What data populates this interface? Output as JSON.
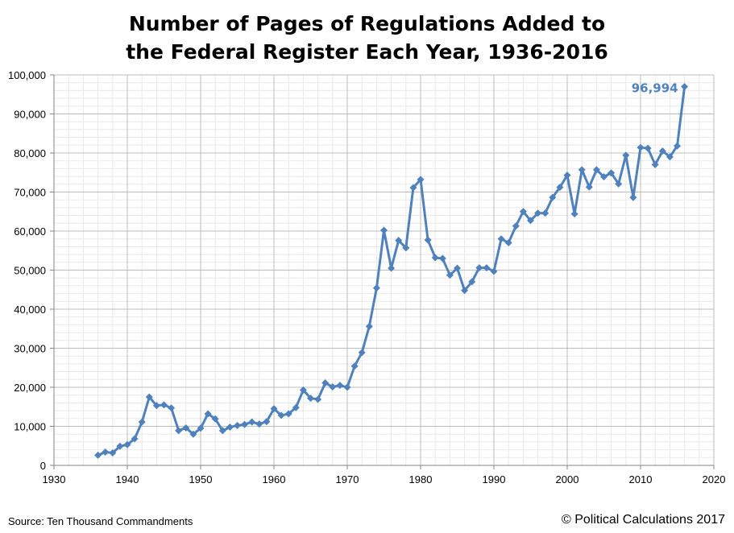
{
  "chart_data": {
    "type": "line",
    "title_lines": [
      "Number of Pages of Regulations Added to",
      "the Federal Register Each Year, 1936-2016"
    ],
    "xlabel": "",
    "ylabel": "",
    "xlim": [
      1930,
      2020
    ],
    "ylim": [
      0,
      100000
    ],
    "x_ticks": [
      1930,
      1940,
      1950,
      1960,
      1970,
      1980,
      1990,
      2000,
      2010,
      2020
    ],
    "y_ticks": [
      0,
      10000,
      20000,
      30000,
      40000,
      50000,
      60000,
      70000,
      80000,
      90000,
      100000
    ],
    "y_tick_labels": [
      "0",
      "10,000",
      "20,000",
      "30,000",
      "40,000",
      "50,000",
      "60,000",
      "70,000",
      "80,000",
      "90,000",
      "100,000"
    ],
    "grid": true,
    "series": [
      {
        "color": "#4f81bd",
        "x": [
          1936,
          1937,
          1938,
          1939,
          1940,
          1941,
          1942,
          1943,
          1944,
          1945,
          1946,
          1947,
          1948,
          1949,
          1950,
          1951,
          1952,
          1953,
          1954,
          1955,
          1956,
          1957,
          1958,
          1959,
          1960,
          1961,
          1962,
          1963,
          1964,
          1965,
          1966,
          1967,
          1968,
          1969,
          1970,
          1971,
          1972,
          1973,
          1974,
          1975,
          1976,
          1977,
          1978,
          1979,
          1980,
          1981,
          1982,
          1983,
          1984,
          1985,
          1986,
          1987,
          1988,
          1989,
          1990,
          1991,
          1992,
          1993,
          1994,
          1995,
          1996,
          1997,
          1998,
          1999,
          2000,
          2001,
          2002,
          2003,
          2004,
          2005,
          2006,
          2007,
          2008,
          2009,
          2010,
          2011,
          2012,
          2013,
          2014,
          2015,
          2016
        ],
        "y": [
          2600,
          3400,
          3200,
          4900,
          5300,
          6800,
          11100,
          17500,
          15300,
          15500,
          14700,
          8900,
          9600,
          8000,
          9500,
          13200,
          11900,
          8900,
          9800,
          10200,
          10500,
          11100,
          10600,
          11200,
          14500,
          12800,
          13200,
          14800,
          19300,
          17200,
          16900,
          21100,
          20100,
          20500,
          20000,
          25400,
          28900,
          35600,
          45400,
          60200,
          50500,
          57600,
          55700,
          71100,
          73200,
          57700,
          53200,
          53000,
          48700,
          50500,
          44800,
          47000,
          50600,
          50600,
          49700,
          58000,
          57000,
          61300,
          65000,
          62700,
          64600,
          64600,
          68600,
          71200,
          74300,
          64400,
          75700,
          71300,
          75700,
          73900,
          74900,
          72100,
          79400,
          68600,
          81400,
          81200,
          77000,
          80500,
          79000,
          81800,
          96994
        ]
      }
    ],
    "annotation": {
      "label": "96,994",
      "x": 2016,
      "y": 96994
    }
  },
  "footer": {
    "source": "Source: Ten Thousand Commandments",
    "copyright": "© Political Calculations 2017"
  }
}
